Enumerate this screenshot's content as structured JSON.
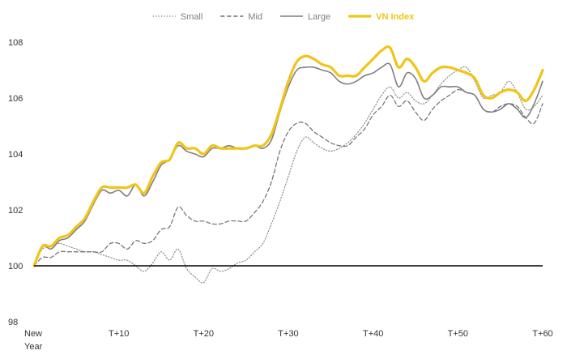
{
  "chart_data": {
    "type": "line",
    "title": "",
    "xlabel": "",
    "ylabel": "",
    "xlim": [
      0,
      60
    ],
    "ylim": [
      98,
      108
    ],
    "yticks": [
      98,
      100,
      102,
      104,
      106,
      108
    ],
    "xticks": [
      {
        "x": 0,
        "label": "New",
        "label2": "Year"
      },
      {
        "x": 10,
        "label": "T+10"
      },
      {
        "x": 20,
        "label": "T+20"
      },
      {
        "x": 30,
        "label": "T+30"
      },
      {
        "x": 40,
        "label": "T+40"
      },
      {
        "x": 50,
        "label": "T+50"
      },
      {
        "x": 60,
        "label": "T+60"
      }
    ],
    "baseline": 100,
    "grid": false,
    "legend_position": "top-center",
    "series": [
      {
        "name": "Small",
        "style": "dotted",
        "color": "#8c8c8c",
        "values": [
          100.0,
          100.6,
          100.7,
          100.8,
          100.7,
          100.6,
          100.5,
          100.5,
          100.4,
          100.3,
          100.2,
          100.2,
          100.0,
          99.8,
          100.1,
          100.5,
          100.2,
          100.6,
          99.9,
          99.6,
          99.4,
          99.9,
          99.8,
          99.9,
          100.1,
          100.2,
          100.5,
          100.8,
          101.5,
          102.3,
          103.2,
          104.1,
          104.6,
          104.4,
          104.2,
          104.1,
          104.2,
          104.4,
          104.7,
          105.1,
          105.6,
          106.1,
          106.4,
          106.0,
          106.2,
          105.9,
          105.8,
          106.1,
          106.5,
          106.8,
          107.0,
          107.1,
          106.6,
          106.0,
          106.1,
          106.2,
          106.6,
          106.2,
          105.6,
          105.7,
          106.1
        ]
      },
      {
        "name": "Mid",
        "style": "dashed",
        "color": "#6e6e6e",
        "values": [
          100.0,
          100.3,
          100.3,
          100.5,
          100.5,
          100.5,
          100.5,
          100.5,
          100.5,
          100.8,
          100.8,
          100.6,
          100.9,
          100.8,
          100.9,
          101.3,
          101.4,
          102.1,
          101.8,
          101.6,
          101.6,
          101.5,
          101.5,
          101.6,
          101.6,
          101.6,
          101.9,
          102.3,
          103.0,
          104.1,
          104.8,
          105.1,
          105.1,
          104.8,
          104.6,
          104.4,
          104.3,
          104.3,
          104.6,
          104.9,
          105.4,
          105.7,
          106.1,
          105.7,
          105.9,
          105.5,
          105.2,
          105.6,
          105.9,
          106.1,
          106.3,
          106.2,
          106.1,
          105.6,
          105.5,
          105.7,
          105.8,
          105.7,
          105.3,
          105.1,
          105.8
        ]
      },
      {
        "name": "Large",
        "style": "solid",
        "color": "#7f7f7f",
        "values": [
          100.0,
          100.7,
          100.6,
          100.9,
          101.0,
          101.3,
          101.6,
          102.2,
          102.7,
          102.6,
          102.7,
          102.5,
          102.9,
          102.5,
          103.0,
          103.6,
          103.8,
          104.3,
          104.1,
          104.0,
          103.9,
          104.2,
          104.2,
          104.3,
          104.2,
          104.2,
          104.3,
          104.2,
          104.5,
          105.5,
          106.4,
          107.0,
          107.1,
          107.1,
          107.0,
          106.9,
          106.6,
          106.5,
          106.6,
          106.8,
          106.9,
          107.1,
          107.2,
          106.4,
          106.9,
          106.7,
          106.0,
          106.1,
          106.4,
          106.4,
          106.4,
          106.2,
          106.1,
          105.6,
          105.5,
          105.6,
          105.8,
          105.6,
          105.3,
          105.8,
          106.6
        ]
      },
      {
        "name": "VN Index",
        "style": "solid",
        "color": "#f0c419",
        "highlight": true,
        "values": [
          100.0,
          100.7,
          100.7,
          101.0,
          101.1,
          101.4,
          101.7,
          102.3,
          102.8,
          102.8,
          102.8,
          102.8,
          102.9,
          102.6,
          103.2,
          103.7,
          103.8,
          104.4,
          104.2,
          104.2,
          104.0,
          104.3,
          104.2,
          104.2,
          104.2,
          104.2,
          104.3,
          104.3,
          104.7,
          105.6,
          106.6,
          107.3,
          107.5,
          107.4,
          107.2,
          107.1,
          106.8,
          106.8,
          106.8,
          107.1,
          107.4,
          107.7,
          107.8,
          107.1,
          107.4,
          107.1,
          106.6,
          106.9,
          107.1,
          107.1,
          107.0,
          106.9,
          106.7,
          106.1,
          106.0,
          106.2,
          106.3,
          106.2,
          105.9,
          106.3,
          107.0
        ]
      }
    ]
  }
}
